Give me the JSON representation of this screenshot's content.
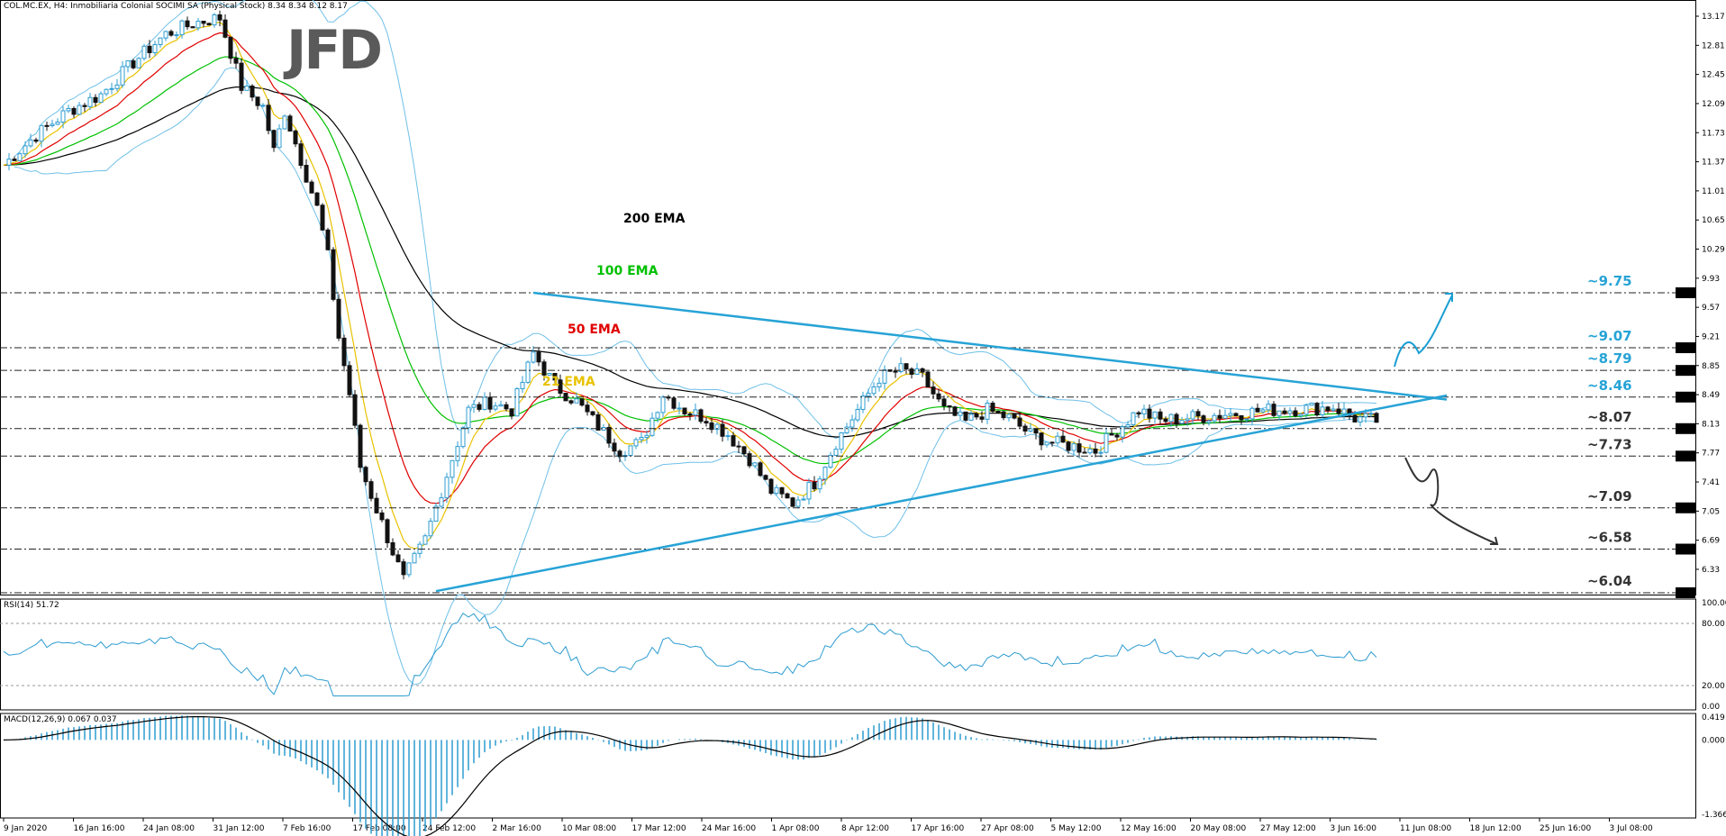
{
  "header": {
    "symbol_info": "COL.MC.EX, H4:  Inmobiliaria Colonial SOCIMI SA (Physical Stock)  8.34 8.34 8.12 8.17",
    "logo": "JFD"
  },
  "colors": {
    "bullish": "#2e9cd0",
    "bearish": "#111111",
    "ema21": "#e8c200",
    "ema50": "#e00000",
    "ema100": "#00c000",
    "ema200": "#000000",
    "bollinger": "#6fc0e8",
    "trendline": "#27a3d6",
    "up_arrow": "#1a9ed4",
    "down_arrow": "#333333",
    "rsi": "#2e9cd0",
    "macd_hist": "#2e9cd0",
    "macd_signal": "#000000"
  },
  "chart_data": [
    {
      "type": "line",
      "title": "COL.MC.EX, H4",
      "ylim": [
        6.04,
        13.17
      ],
      "y_ticks": [
        "13.17",
        "12.81",
        "12.45",
        "12.09",
        "11.73",
        "11.37",
        "11.01",
        "10.65",
        "10.29",
        "9.93",
        "9.57",
        "9.21",
        "8.85",
        "8.49",
        "8.13",
        "7.77",
        "7.41",
        "7.05",
        "6.69",
        "6.33"
      ],
      "x_ticks": [
        "9 Jan 2020",
        "16 Jan 16:00",
        "24 Jan 08:00",
        "31 Jan 12:00",
        "7 Feb 16:00",
        "17 Feb 08:00",
        "24 Feb 12:00",
        "2 Mar 16:00",
        "10 Mar 08:00",
        "17 Mar 12:00",
        "24 Mar 16:00",
        "1 Apr 08:00",
        "8 Apr 12:00",
        "17 Apr 16:00",
        "27 Apr 08:00",
        "5 May 12:00",
        "12 May 16:00",
        "20 May 08:00",
        "27 May 12:00",
        "3 Jun 16:00",
        "11 Jun 08:00",
        "18 Jun 12:00",
        "25 Jun 16:00",
        "3 Jul 08:00"
      ],
      "price_path": {
        "x": [
          0,
          6,
          12,
          18,
          24,
          30,
          36,
          40,
          44,
          48,
          50,
          52,
          54,
          56,
          58,
          60,
          62,
          64,
          66,
          70,
          74,
          78,
          82,
          86,
          90,
          94,
          98,
          102,
          106,
          110,
          114,
          118,
          122,
          126,
          130,
          134,
          138,
          142,
          146,
          150,
          154,
          158,
          162,
          166,
          170,
          174,
          178,
          182,
          186,
          190,
          194,
          198,
          202,
          206,
          210,
          214,
          218,
          222,
          226,
          230,
          234,
          238,
          242,
          246,
          250,
          254
        ],
        "y": [
          11.33,
          11.7,
          12.0,
          12.2,
          12.6,
          12.95,
          13.1,
          13.15,
          12.3,
          12.05,
          11.5,
          12.0,
          11.6,
          11.2,
          10.8,
          10.2,
          9.2,
          8.5,
          7.6,
          6.9,
          6.2,
          6.7,
          7.5,
          8.3,
          8.4,
          8.3,
          9.0,
          8.6,
          8.4,
          8.1,
          7.8,
          7.9,
          8.5,
          8.3,
          8.2,
          8.0,
          7.7,
          7.3,
          7.15,
          7.4,
          7.9,
          8.3,
          8.7,
          8.8,
          8.7,
          8.3,
          8.15,
          8.3,
          8.2,
          8.0,
          7.9,
          7.85,
          7.8,
          8.05,
          8.3,
          8.17,
          8.2,
          8.22,
          8.25,
          8.27,
          8.3,
          8.31,
          8.32,
          8.34,
          8.2,
          8.17
        ]
      },
      "ema_labels": [
        "200 EMA",
        "100 EMA",
        "50 EMA",
        "21 EMA"
      ],
      "horizontal_levels": [
        {
          "value": 9.75,
          "label": "~9.75",
          "axis_label": "9.75",
          "color": "#27a3d6"
        },
        {
          "value": 9.07,
          "label": "~9.07",
          "axis_label": "9.07",
          "color": "#27a3d6"
        },
        {
          "value": 8.79,
          "label": "~8.79",
          "axis_label": "8.79",
          "color": "#27a3d6"
        },
        {
          "value": 8.46,
          "label": "~8.46",
          "axis_label": "8.46",
          "color": "#27a3d6"
        },
        {
          "value": 8.07,
          "label": "~8.07",
          "axis_label": "8.07",
          "color": "#333333"
        },
        {
          "value": 7.73,
          "label": "~7.73",
          "axis_label": "7.73",
          "color": "#333333"
        },
        {
          "value": 7.09,
          "label": "~7.09",
          "axis_label": "7.09",
          "color": "#333333"
        },
        {
          "value": 6.58,
          "label": "~6.58",
          "axis_label": "6.58",
          "color": "#333333"
        },
        {
          "value": 6.04,
          "label": "~6.04",
          "axis_label": "6.04",
          "color": "#333333"
        }
      ],
      "trendlines": [
        {
          "name": "descending",
          "from": {
            "x": 98,
            "y": 9.75
          },
          "to": {
            "x": 212,
            "y": 8.55
          }
        },
        {
          "name": "ascending",
          "from": {
            "x": 80,
            "y": 6.06
          },
          "to": {
            "x": 212,
            "y": 8.13
          }
        }
      ]
    },
    {
      "type": "line",
      "title": "RSI(14) 51.72",
      "ylim": [
        0,
        100
      ],
      "y_ticks": [
        "100.00",
        "80.00",
        "20.00",
        "0.00"
      ],
      "levels": [
        80,
        20
      ]
    },
    {
      "type": "bar",
      "title": "MACD(12,26,9) 0.067 0.037",
      "ylim": [
        -1.366,
        0.419
      ],
      "y_ticks": [
        "0.419",
        "0.000",
        "-1.366"
      ]
    }
  ]
}
